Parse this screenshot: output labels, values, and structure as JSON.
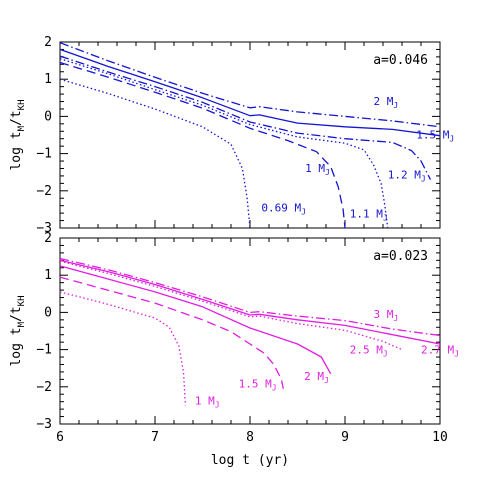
{
  "chart_data": [
    {
      "type": "line",
      "panel": "top",
      "label": "a=0.046",
      "color": "#1414d2",
      "xlabel": "log t (yr)",
      "ylabel": "log t_M/t_KH",
      "xlim": [
        6,
        10
      ],
      "ylim": [
        -3,
        2
      ],
      "xticks": [
        "6",
        "7",
        "8",
        "9",
        "10"
      ],
      "yticks": [
        "-3",
        "-2",
        "-1",
        "0",
        "1",
        "2"
      ],
      "series": [
        {
          "name": "2 MJ",
          "label_main": "2 M",
          "label_sub": "J",
          "dash": "dashdot",
          "x": [
            6.0,
            6.5,
            7.0,
            7.5,
            8.0,
            8.1,
            8.5,
            9.0,
            9.5,
            10.0
          ],
          "y": [
            1.98,
            1.5,
            1.05,
            0.62,
            0.23,
            0.26,
            0.12,
            0.0,
            -0.12,
            -0.28
          ]
        },
        {
          "name": "1.5 MJ",
          "label_main": "1.5 M",
          "label_sub": "J",
          "dash": "solid",
          "x": [
            6.0,
            6.5,
            7.0,
            7.5,
            8.0,
            8.1,
            8.5,
            9.0,
            9.5,
            10.0
          ],
          "y": [
            1.8,
            1.35,
            0.93,
            0.5,
            0.02,
            0.04,
            -0.18,
            -0.28,
            -0.35,
            -0.52
          ]
        },
        {
          "name": "1.2 MJ",
          "label_main": "1.2 M",
          "label_sub": "J",
          "dash": "dashdot",
          "x": [
            6.0,
            6.5,
            7.0,
            7.5,
            8.0,
            8.5,
            9.0,
            9.5,
            9.7,
            9.8,
            9.85,
            9.9
          ],
          "y": [
            1.62,
            1.2,
            0.8,
            0.38,
            -0.15,
            -0.45,
            -0.6,
            -0.7,
            -0.92,
            -1.2,
            -1.45,
            -1.7
          ]
        },
        {
          "name": "1.1 MJ",
          "label_main": "1.1 M",
          "label_sub": "J",
          "dash": "dot",
          "x": [
            6.0,
            6.5,
            7.0,
            7.5,
            8.0,
            8.5,
            9.0,
            9.2,
            9.3,
            9.38,
            9.42,
            9.45
          ],
          "y": [
            1.55,
            1.15,
            0.72,
            0.3,
            -0.22,
            -0.55,
            -0.72,
            -0.9,
            -1.3,
            -1.8,
            -2.4,
            -3.0
          ]
        },
        {
          "name": "1 MJ",
          "label_main": "1 M",
          "label_sub": "J",
          "dash": "dash",
          "x": [
            6.0,
            6.5,
            7.0,
            7.5,
            8.0,
            8.4,
            8.7,
            8.85,
            8.93,
            8.98,
            9.0
          ],
          "y": [
            1.45,
            1.06,
            0.65,
            0.22,
            -0.32,
            -0.65,
            -0.95,
            -1.35,
            -1.9,
            -2.5,
            -3.0
          ]
        },
        {
          "name": "0.69 MJ",
          "label_main": "0.69 M",
          "label_sub": "J",
          "dash": "dot",
          "x": [
            6.0,
            6.5,
            7.0,
            7.5,
            7.8,
            7.92,
            7.97,
            8.0
          ],
          "y": [
            1.0,
            0.62,
            0.2,
            -0.28,
            -0.75,
            -1.4,
            -2.2,
            -3.0
          ]
        }
      ],
      "annotations": [
        {
          "text": "2 M",
          "sub": "J",
          "x": 9.3,
          "y": 0.3
        },
        {
          "text": "1.5 M",
          "sub": "J",
          "x": 9.75,
          "y": -0.6
        },
        {
          "text": "1.2 M",
          "sub": "J",
          "x": 9.45,
          "y": -1.67
        },
        {
          "text": "1 M",
          "sub": "J",
          "x": 8.58,
          "y": -1.5
        },
        {
          "text": "1.1 M",
          "sub": "J",
          "x": 9.05,
          "y": -2.72
        },
        {
          "text": "0.69 M",
          "sub": "J",
          "x": 8.12,
          "y": -2.55
        }
      ]
    },
    {
      "type": "line",
      "panel": "bottom",
      "label": "a=0.023",
      "color": "#e11ee1",
      "xlabel": "log t (yr)",
      "ylabel": "log t_M/t_KH",
      "xlim": [
        6,
        10
      ],
      "ylim": [
        -3,
        2
      ],
      "xticks": [
        "6",
        "7",
        "8",
        "9",
        "10"
      ],
      "yticks": [
        "-3",
        "-2",
        "-1",
        "0",
        "1",
        "2"
      ],
      "series": [
        {
          "name": "3 MJ",
          "label_main": "3 M",
          "label_sub": "J",
          "dash": "dashdot",
          "x": [
            6.0,
            6.5,
            7.0,
            7.5,
            8.0,
            8.1,
            8.5,
            9.0,
            9.5,
            10.0
          ],
          "y": [
            1.45,
            1.15,
            0.8,
            0.42,
            0.0,
            0.02,
            -0.1,
            -0.22,
            -0.45,
            -0.62
          ]
        },
        {
          "name": "2.7 MJ",
          "label_main": "2.7 M",
          "label_sub": "J",
          "dash": "solid",
          "x": [
            6.0,
            6.5,
            7.0,
            7.5,
            8.0,
            8.1,
            8.5,
            9.0,
            9.5,
            10.0
          ],
          "y": [
            1.4,
            1.1,
            0.75,
            0.35,
            -0.07,
            -0.05,
            -0.2,
            -0.35,
            -0.6,
            -0.85
          ]
        },
        {
          "name": "2.5 MJ",
          "label_main": "2.5 M",
          "label_sub": "J",
          "dash": "dot",
          "x": [
            6.0,
            6.5,
            7.0,
            7.5,
            8.0,
            8.1,
            8.5,
            9.0,
            9.4,
            9.6
          ],
          "y": [
            1.38,
            1.05,
            0.7,
            0.3,
            -0.12,
            -0.1,
            -0.3,
            -0.48,
            -0.78,
            -1.0
          ]
        },
        {
          "name": "2 MJ",
          "label_main": "2 M",
          "label_sub": "J",
          "dash": "solid",
          "x": [
            6.0,
            6.5,
            7.0,
            7.5,
            8.0,
            8.5,
            8.75,
            8.85
          ],
          "y": [
            1.25,
            0.9,
            0.55,
            0.15,
            -0.42,
            -0.85,
            -1.2,
            -1.65
          ]
        },
        {
          "name": "1.5 MJ",
          "label_main": "1.5 M",
          "label_sub": "J",
          "dash": "dash",
          "x": [
            6.0,
            6.5,
            7.0,
            7.5,
            7.8,
            8.0,
            8.15,
            8.25,
            8.33,
            8.35
          ],
          "y": [
            0.95,
            0.6,
            0.25,
            -0.2,
            -0.52,
            -0.85,
            -1.1,
            -1.4,
            -1.8,
            -2.05
          ]
        },
        {
          "name": "1 MJ",
          "label_main": "1 M",
          "label_sub": "J",
          "dash": "dot",
          "x": [
            6.0,
            6.5,
            7.0,
            7.15,
            7.25,
            7.3,
            7.32
          ],
          "y": [
            0.55,
            0.22,
            -0.15,
            -0.4,
            -0.9,
            -1.6,
            -2.5
          ]
        }
      ],
      "annotations": [
        {
          "text": "3 M",
          "sub": "J",
          "x": 9.3,
          "y": -0.15
        },
        {
          "text": "2.7 M",
          "sub": "J",
          "x": 9.8,
          "y": -1.1
        },
        {
          "text": "2.5 M",
          "sub": "J",
          "x": 9.05,
          "y": -1.1
        },
        {
          "text": "2 M",
          "sub": "J",
          "x": 8.57,
          "y": -1.82
        },
        {
          "text": "1.5 M",
          "sub": "J",
          "x": 7.88,
          "y": -2.02
        },
        {
          "text": "1 M",
          "sub": "J",
          "x": 7.42,
          "y": -2.48
        }
      ]
    }
  ]
}
